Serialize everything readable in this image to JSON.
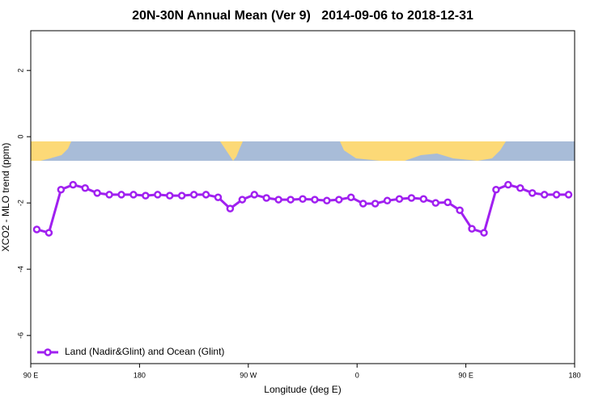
{
  "chart_data": {
    "type": "line",
    "title": "20N-30N Annual Mean (Ver 9)   2014-09-06 to 2018-12-31",
    "x_label": "Longitude (deg E)",
    "y_label": "XCO2 - MLO trend (ppm)",
    "x": [
      95,
      105,
      115,
      125,
      135,
      145,
      155,
      165,
      175,
      185,
      195,
      205,
      215,
      225,
      235,
      245,
      255,
      265,
      275,
      285,
      295,
      305,
      315,
      325,
      335,
      345,
      355,
      365,
      375,
      385,
      395,
      405,
      415,
      425,
      435,
      445,
      455,
      465,
      475,
      485,
      495,
      505,
      515,
      525,
      535
    ],
    "series": [
      {
        "name": "Land (Nadir&Glint) and Ocean (Glint)",
        "color": "#a020f0",
        "values": [
          -2.8,
          -2.9,
          -1.6,
          -1.45,
          -1.55,
          -1.7,
          -1.75,
          -1.75,
          -1.75,
          -1.78,
          -1.75,
          -1.78,
          -1.78,
          -1.75,
          -1.75,
          -1.83,
          -2.17,
          -1.9,
          -1.75,
          -1.85,
          -1.9,
          -1.9,
          -1.88,
          -1.9,
          -1.93,
          -1.9,
          -1.83,
          -2.02,
          -2.02,
          -1.93,
          -1.88,
          -1.85,
          -1.88,
          -2.0,
          -1.98,
          -2.22,
          -2.78,
          -2.9,
          -1.6,
          -1.45,
          -1.55,
          -1.7,
          -1.75,
          -1.75,
          -1.75
        ]
      }
    ],
    "xlim": [
      90,
      540
    ],
    "xticks": [
      {
        "value": 90,
        "label": "90 E"
      },
      180,
      {
        "value": 270,
        "label": "90 W"
      },
      {
        "value": 360,
        "label": "0"
      },
      {
        "value": 450,
        "label": "90 E"
      },
      {
        "value": 540,
        "label": "180"
      }
    ],
    "ylim": [
      -6.85,
      3.2
    ],
    "yticks": [
      -6,
      -4,
      -2,
      0,
      2
    ],
    "legend": "bottom-left"
  }
}
